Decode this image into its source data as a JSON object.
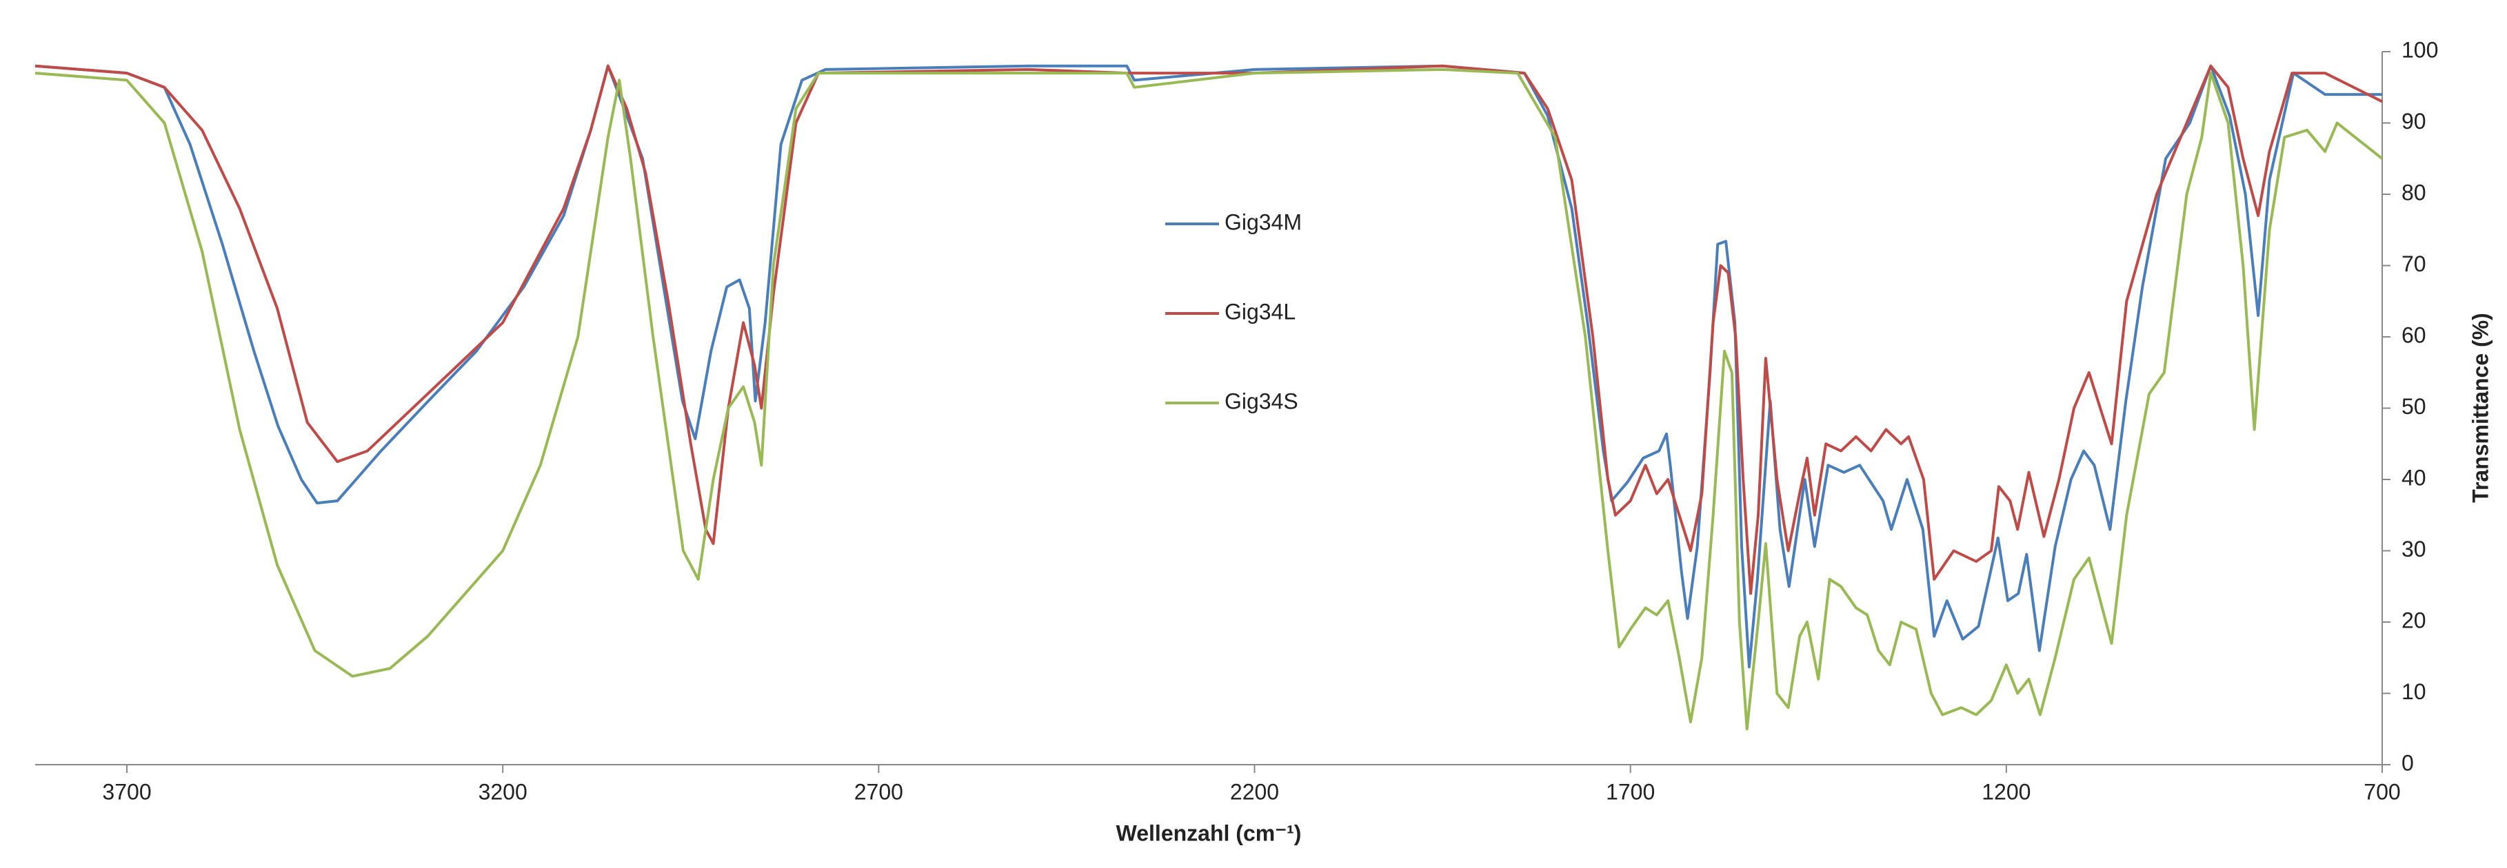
{
  "chart_data": {
    "type": "line",
    "x_label": "Wellenzahl (cm⁻¹)",
    "y_label": "Transmittance (%)",
    "xlim": [
      3822,
      700
    ],
    "xticks": [
      3700,
      3200,
      2700,
      2200,
      1700,
      1200,
      700
    ],
    "ylim": [
      0,
      100
    ],
    "yticks": [
      0,
      10,
      20,
      30,
      40,
      50,
      60,
      70,
      80,
      90,
      100
    ],
    "y_axis_side": "right",
    "grid": false,
    "legend_position": "center",
    "series": [
      {
        "name": "Gig34M",
        "color": "#4a7ebb",
        "x": [
          3822,
          3700,
          3650,
          3616,
          3573,
          3531,
          3499,
          3468,
          3447,
          3420,
          3362,
          3299,
          3235,
          3172,
          3119,
          3083,
          3060,
          3035,
          3014,
          2986,
          2961,
          2944,
          2923,
          2902,
          2885,
          2872,
          2864,
          2851,
          2830,
          2802,
          2771,
          2500,
          2370,
          2360,
          2200,
          1950,
          1841,
          1810,
          1778,
          1757,
          1736,
          1725,
          1704,
          1683,
          1662,
          1652,
          1647,
          1632,
          1624,
          1611,
          1594,
          1584,
          1573,
          1561,
          1552,
          1542,
          1531,
          1514,
          1501,
          1489,
          1468,
          1455,
          1437,
          1416,
          1395,
          1364,
          1353,
          1332,
          1311,
          1296,
          1279,
          1258,
          1237,
          1211,
          1198,
          1184,
          1173,
          1156,
          1135,
          1114,
          1097,
          1083,
          1062,
          1041,
          1019,
          988,
          956,
          928,
          903,
          882,
          865,
          850,
          818,
          776,
          700
        ],
        "values": [
          98,
          97,
          95,
          87,
          73,
          58,
          47.5,
          40,
          36.7,
          37,
          44,
          51,
          58,
          67,
          77,
          89,
          98,
          91,
          85,
          67,
          51,
          45.7,
          58,
          67,
          68,
          64,
          51,
          62,
          87,
          96,
          97.5,
          98,
          98,
          96,
          97.5,
          98,
          97,
          91,
          78,
          62,
          44,
          37,
          39.6,
          43,
          44,
          46.4,
          42,
          27,
          20.5,
          30.6,
          55,
          73,
          73.4,
          62,
          30.6,
          13.7,
          26,
          51,
          33,
          25,
          40,
          30.6,
          42,
          41,
          42,
          37,
          33,
          40,
          33,
          18,
          23,
          17.6,
          19.4,
          31.8,
          23,
          24,
          29.5,
          16,
          30.6,
          40,
          44,
          42,
          33,
          51,
          67,
          85,
          90,
          98,
          91,
          80,
          63,
          82,
          97,
          94,
          94
        ]
      },
      {
        "name": "Gig34L",
        "color": "#be4b48",
        "x": [
          3822,
          3700,
          3650,
          3600,
          3550,
          3500,
          3460,
          3420,
          3380,
          3300,
          3200,
          3119,
          3083,
          3060,
          3035,
          3010,
          2980,
          2950,
          2930,
          2920,
          2900,
          2880,
          2865,
          2856,
          2840,
          2810,
          2780,
          2500,
          2370,
          2200,
          1950,
          1841,
          1810,
          1778,
          1750,
          1730,
          1720,
          1700,
          1680,
          1665,
          1650,
          1635,
          1620,
          1605,
          1590,
          1580,
          1570,
          1560,
          1550,
          1540,
          1530,
          1520,
          1505,
          1490,
          1475,
          1465,
          1455,
          1440,
          1420,
          1400,
          1380,
          1360,
          1340,
          1330,
          1310,
          1296,
          1270,
          1240,
          1220,
          1210,
          1195,
          1185,
          1170,
          1150,
          1130,
          1110,
          1090,
          1075,
          1060,
          1040,
          1000,
          960,
          928,
          905,
          885,
          865,
          850,
          820,
          776,
          700
        ],
        "values": [
          98,
          97,
          95,
          89,
          78,
          64,
          48,
          42.5,
          44,
          52,
          62,
          78,
          89,
          98,
          92,
          83,
          65,
          45,
          33,
          31,
          50,
          62,
          56,
          50,
          66,
          90,
          97,
          97.5,
          97,
          97,
          98,
          97,
          92,
          82,
          60,
          40,
          35,
          37,
          42,
          38,
          40,
          35,
          30,
          38,
          62,
          70,
          69,
          60,
          40,
          24,
          35,
          57,
          40,
          30,
          38,
          43,
          35,
          45,
          44,
          46,
          44,
          47,
          45,
          46,
          40,
          26,
          30,
          28.5,
          30,
          39,
          37,
          33,
          41,
          32,
          40,
          50,
          55,
          50,
          45,
          65,
          80,
          90,
          98,
          95,
          85,
          77,
          86,
          97,
          97,
          93
        ]
      },
      {
        "name": "Gig34S",
        "color": "#98b954",
        "x": [
          3822,
          3700,
          3650,
          3600,
          3550,
          3500,
          3450,
          3400,
          3350,
          3300,
          3200,
          3150,
          3100,
          3060,
          3045,
          3030,
          3000,
          2960,
          2940,
          2920,
          2900,
          2880,
          2865,
          2856,
          2840,
          2810,
          2780,
          2500,
          2370,
          2360,
          2200,
          1950,
          1850,
          1800,
          1760,
          1730,
          1715,
          1700,
          1680,
          1665,
          1650,
          1635,
          1620,
          1605,
          1590,
          1575,
          1565,
          1555,
          1545,
          1530,
          1520,
          1505,
          1490,
          1475,
          1465,
          1450,
          1435,
          1420,
          1400,
          1385,
          1370,
          1355,
          1340,
          1320,
          1300,
          1285,
          1260,
          1240,
          1220,
          1200,
          1185,
          1170,
          1155,
          1135,
          1110,
          1090,
          1060,
          1040,
          1010,
          990,
          960,
          940,
          928,
          905,
          885,
          870,
          850,
          830,
          800,
          776,
          760,
          700
        ],
        "values": [
          97,
          96,
          90,
          72,
          47,
          28,
          16,
          12.4,
          13.5,
          18,
          30,
          42,
          60,
          88,
          96,
          85,
          60,
          30,
          26,
          40,
          50,
          53,
          48,
          42,
          70,
          92,
          97,
          97,
          97,
          95,
          97,
          97.5,
          97,
          88,
          60,
          30,
          16.5,
          19,
          22,
          21,
          23,
          15,
          6,
          15,
          35,
          58,
          55,
          20,
          5,
          20,
          31,
          10,
          8,
          18,
          20,
          12,
          26,
          25,
          22,
          21,
          16,
          14,
          20,
          19,
          10,
          7,
          8,
          7,
          9,
          14,
          10,
          12,
          7,
          15,
          26,
          29,
          17,
          35,
          52,
          55,
          80,
          88,
          97,
          90,
          70,
          47,
          75,
          88,
          89,
          86,
          90,
          85
        ]
      }
    ]
  }
}
